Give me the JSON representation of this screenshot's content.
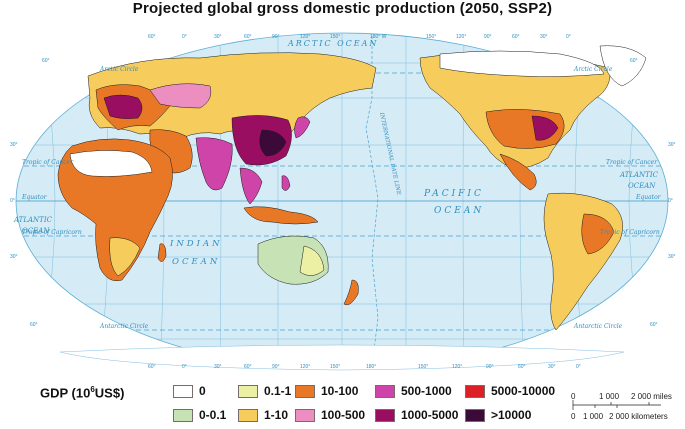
{
  "title": "Projected global gross domestic production (2050, SSP2)",
  "legend": {
    "label_prefix": "GDP (10",
    "label_exponent": "6",
    "label_suffix": "US$)",
    "classes": [
      {
        "label": "0",
        "color": "#ffffff"
      },
      {
        "label": "0-0.1",
        "color": "#c7e2b4"
      },
      {
        "label": "0.1-1",
        "color": "#ecf0a4"
      },
      {
        "label": "1-10",
        "color": "#f6cc5c"
      },
      {
        "label": "10-100",
        "color": "#e97826"
      },
      {
        "label": "100-500",
        "color": "#ec8fc0"
      },
      {
        "label": "500-1000",
        "color": "#cf44a8"
      },
      {
        "label": "1000-5000",
        "color": "#9a0e62"
      },
      {
        "label": "5000-10000",
        "color": "#dd1f26"
      },
      {
        "label": ">10000",
        "color": "#3b0a38"
      }
    ]
  },
  "map": {
    "oceans": {
      "arctic": "ARCTIC  OCEAN",
      "pacific_1": "PACIFIC",
      "pacific_2": "OCEAN",
      "atlantic_w1": "ATLANTIC",
      "atlantic_w2": "OCEAN",
      "atlantic_e1": "ATLANTIC",
      "atlantic_e2": "OCEAN",
      "indian_1": "INDIAN",
      "indian_2": "OCEAN"
    },
    "lines": {
      "arctic_circle": "Arctic Circle",
      "tropic_cancer": "Tropic of Cancer",
      "equator": "Equator",
      "tropic_capricorn": "Tropic of Capricorn",
      "antarctic_circle": "Antarctic Circle",
      "date_line": "INTERNATIONAL  DATE  LINE",
      "date_line_top": "180°"
    },
    "top_ticks": [
      "60°",
      "0°",
      "30°",
      "60°",
      "90°",
      "120°",
      "150°",
      "180° W",
      "150°",
      "120°",
      "90°",
      "60°",
      "30°",
      "0°"
    ],
    "bottom_ticks": [
      "60°",
      "0°",
      "30°",
      "60°",
      "90°",
      "120°",
      "150°",
      "180°",
      "150°",
      "120°",
      "90°",
      "60°",
      "30°",
      "0°"
    ],
    "lat_left": [
      "60°",
      "30°",
      "0°",
      "30°",
      "60°"
    ],
    "lat_right": [
      "60°",
      "30°",
      "0°",
      "30°",
      "60°"
    ]
  },
  "scale": {
    "miles_ticks": [
      "0",
      "1 000",
      "2 000 miles"
    ],
    "km_ticks": [
      "0",
      "1 000",
      "2 000 kilometers"
    ]
  },
  "colors": {
    "ocean": "#d5ebf5",
    "graticule": "#5aaed6",
    "border": "#1a1a1a"
  }
}
